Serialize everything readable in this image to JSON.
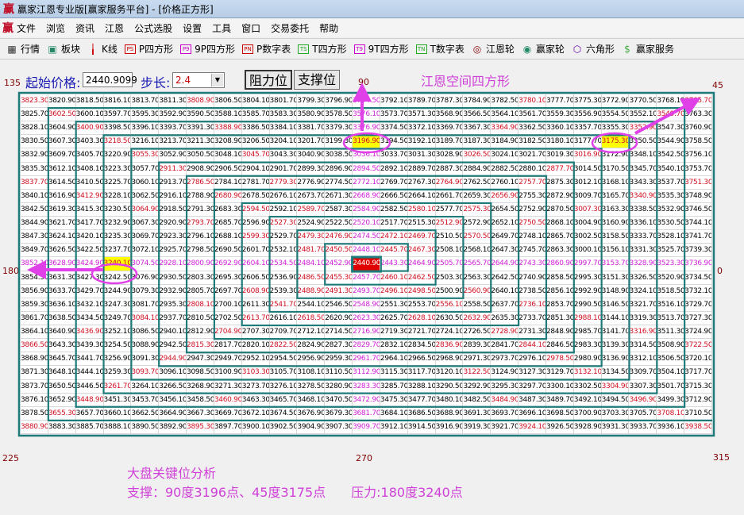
{
  "window": {
    "title": "赢家江恩专业版[赢家服务平台] - [价格正方形]",
    "logo": "赢"
  },
  "menu": [
    "文件",
    "浏览",
    "资讯",
    "江恩",
    "公式选股",
    "设置",
    "工具",
    "窗口",
    "交易委托",
    "帮助"
  ],
  "toolbar": [
    {
      "label": "行情",
      "icon": "table-icon"
    },
    {
      "label": "板块",
      "icon": "blocks-icon"
    },
    {
      "label": "K线",
      "icon": "candlestick-icon"
    },
    {
      "label": "P四方形",
      "icon": "PS"
    },
    {
      "label": "9P四方形",
      "icon": "P9"
    },
    {
      "label": "P数字表",
      "icon": "PN"
    },
    {
      "label": "T四方形",
      "icon": "TS"
    },
    {
      "label": "9T四方形",
      "icon": "T9"
    },
    {
      "label": "T数字表",
      "icon": "TN"
    },
    {
      "label": "江恩轮",
      "icon": "wheel-icon"
    },
    {
      "label": "赢家轮",
      "icon": "big-wheel-icon"
    },
    {
      "label": "六角形",
      "icon": "hexagon-icon"
    },
    {
      "label": "赢家服务",
      "icon": "dollar-icon"
    }
  ],
  "controls": {
    "start_label": "起始价格:",
    "start_value": "2440.9099",
    "step_label": "步长:",
    "step_value": "2.4",
    "resist_button": "阻力位",
    "support_button": "支撑位"
  },
  "heading": "江恩空间四方形",
  "angles": {
    "a135": "135",
    "a90": "90",
    "a45": "45",
    "a180": "180",
    "a0": "0",
    "a225": "225",
    "a270": "270",
    "a315": "315"
  },
  "grid": {
    "size": 25,
    "start": 2440.9099,
    "step": 2.4,
    "highlighted": [
      "3196.90",
      "3175.30",
      "3240.10"
    ],
    "colors": {
      "center_bg": "#e00000",
      "highlight_bg": "#ffff00",
      "cardinal_text": "#d020d8",
      "angle_text": "#d01020",
      "spiral_line": "#1f7a7a"
    }
  },
  "analysis": {
    "title": "大盘关键位分析",
    "line": "支撑：90度3196点、45度3175点　　压力:180度3240点"
  },
  "annotation_color": "#e040e8"
}
